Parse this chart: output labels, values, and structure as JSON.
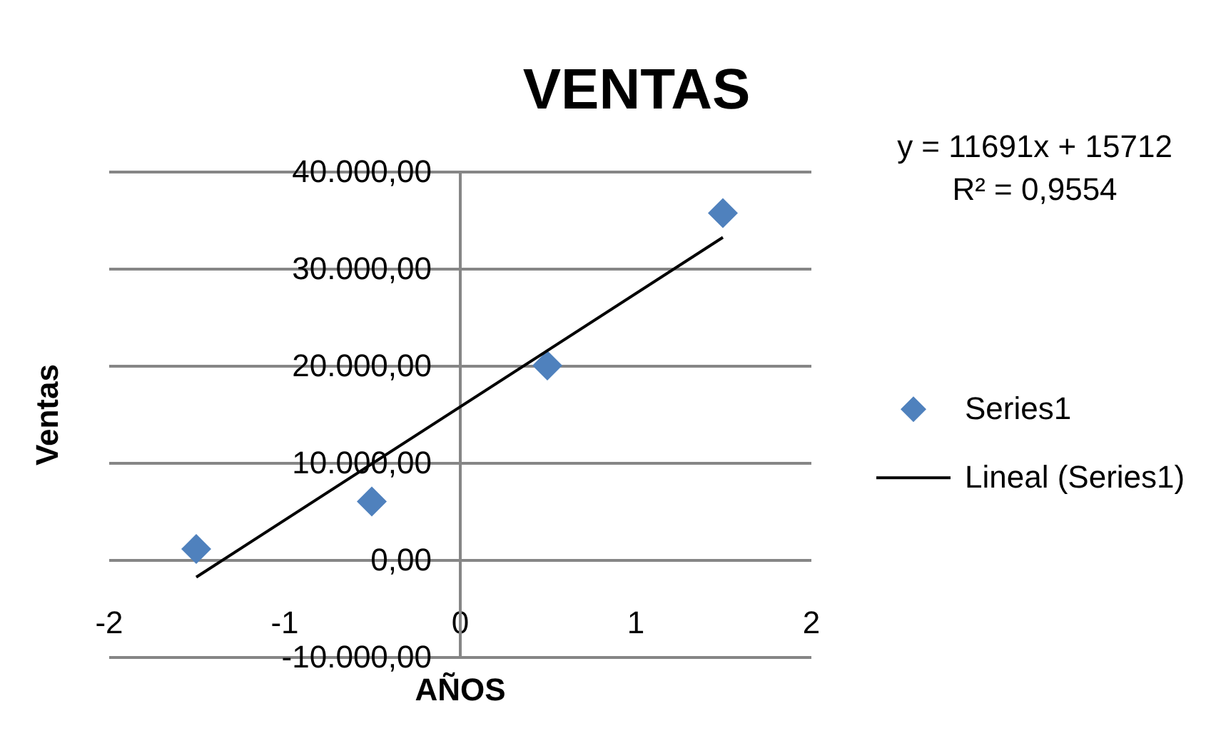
{
  "chart_data": {
    "type": "scatter",
    "title": "VENTAS",
    "xlabel": "AÑOS",
    "ylabel": "Ventas",
    "annotations": [
      "y = 11691x + 15712",
      "R² = 0,9554"
    ],
    "series": [
      {
        "name": "Series1",
        "color": "#4f81bd",
        "marker": "diamond",
        "x": [
          -1.5,
          -0.5,
          0.5,
          1.5
        ],
        "values": [
          1100,
          6000,
          20000,
          35700
        ]
      },
      {
        "name": "Lineal (Series1)",
        "type": "line",
        "color": "#000000",
        "marker": "none",
        "line_style": "solid",
        "x": [
          -1.5,
          1.5
        ],
        "values": [
          -1800,
          33200
        ]
      }
    ],
    "xlim": [
      -2,
      2
    ],
    "ylim": [
      -10000,
      40000
    ],
    "xticks": [
      -2,
      -1,
      0,
      1,
      2
    ],
    "yticks": [
      {
        "value": -10000,
        "label": "-10.000,00"
      },
      {
        "value": 0,
        "label": "0,00"
      },
      {
        "value": 10000,
        "label": "10.000,00"
      },
      {
        "value": 20000,
        "label": "20.000,00"
      },
      {
        "value": 30000,
        "label": "30.000,00"
      },
      {
        "value": 40000,
        "label": "40.000,00"
      }
    ],
    "grid": "y",
    "legend": "right"
  }
}
